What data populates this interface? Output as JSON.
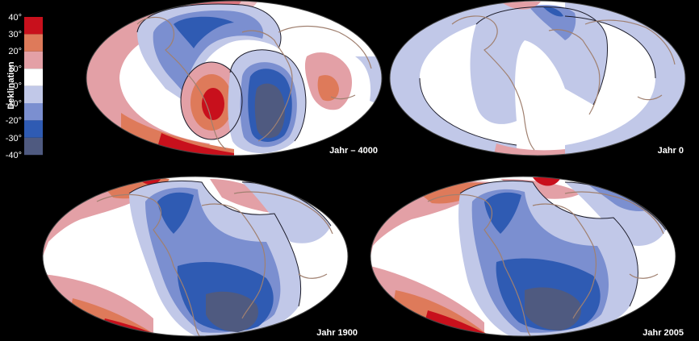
{
  "legend": {
    "title": "Deklination",
    "ticks": [
      "40°",
      "30°",
      "20°",
      "10°",
      "0°",
      "-10°",
      "-20°",
      "-30°",
      "-40°"
    ],
    "bands": [
      {
        "range": "30° to 40°",
        "color": "#c8101c"
      },
      {
        "range": "20° to 30°",
        "color": "#de7a5a"
      },
      {
        "range": "10° to 20°",
        "color": "#e3a0a6"
      },
      {
        "range": "0° to 10°",
        "color": "#ffffff"
      },
      {
        "range": "-10° to 0°",
        "color": "#c1c8e8"
      },
      {
        "range": "-20° to -10°",
        "color": "#7b8fd0"
      },
      {
        "range": "-30° to -20°",
        "color": "#2f5bb3"
      },
      {
        "range": "-40° to -30°",
        "color": "#4f5a80"
      }
    ]
  },
  "maps": [
    {
      "label": "Jahr – 4000"
    },
    {
      "label": "Jahr 0"
    },
    {
      "label": "Jahr 1900"
    },
    {
      "label": "Jahr 2005"
    }
  ],
  "colors": {
    "background": "#000000",
    "coastline": "#a08070",
    "contour": "#1c1c2a"
  }
}
